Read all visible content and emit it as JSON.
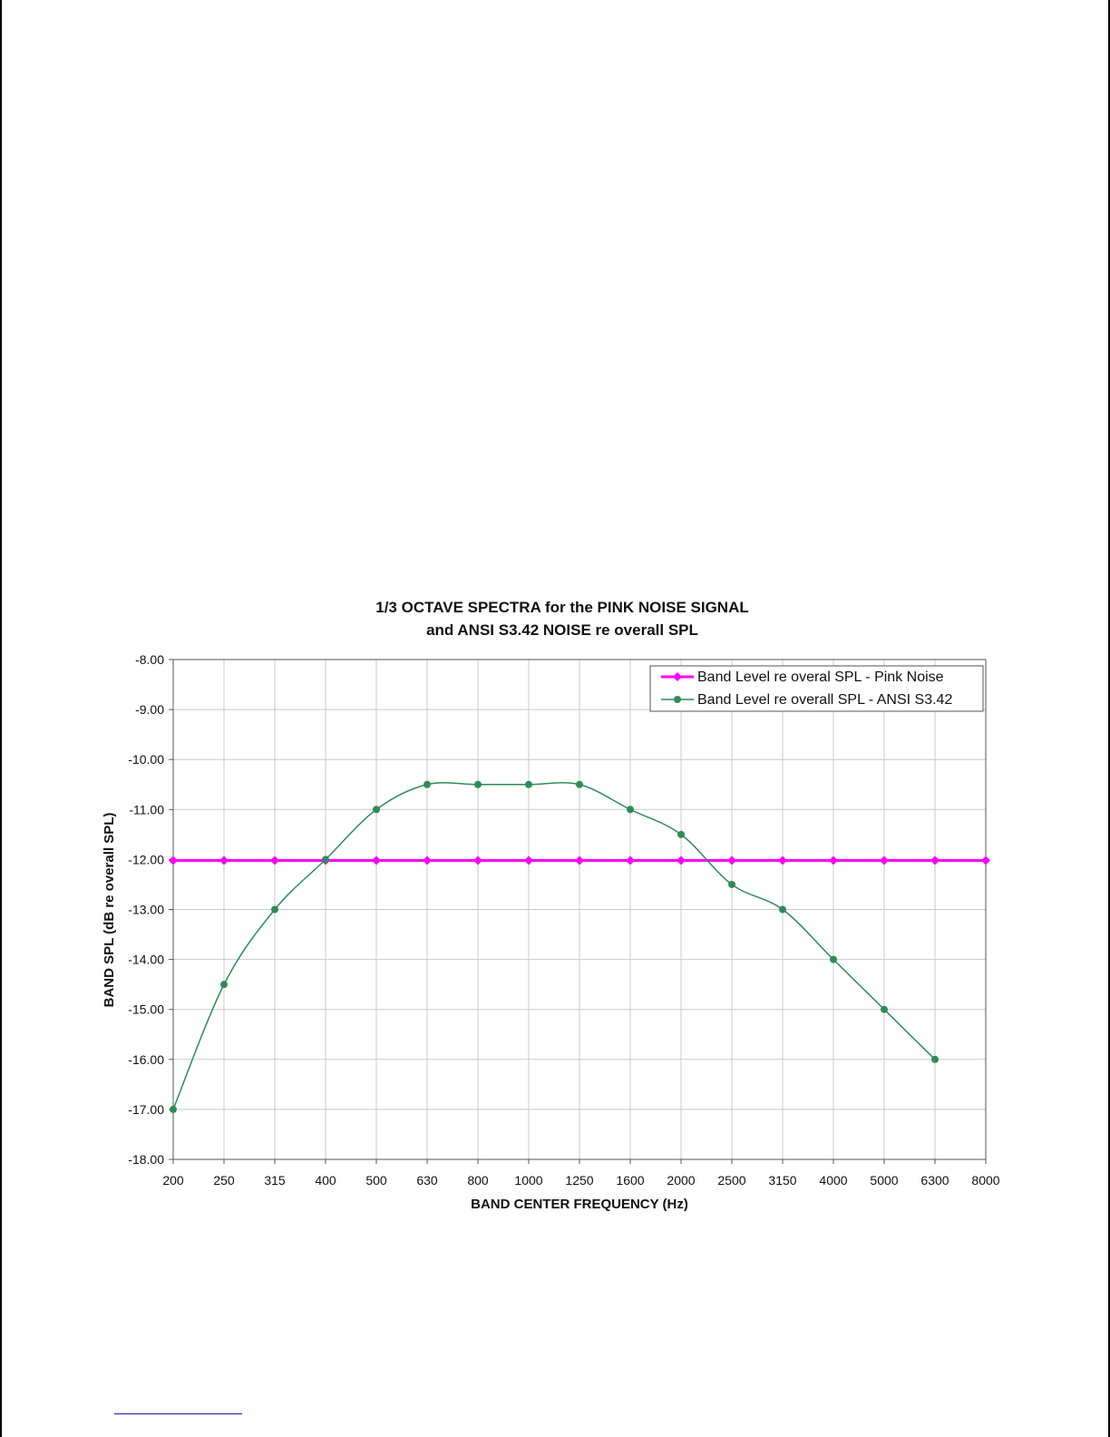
{
  "chart_data": {
    "type": "line",
    "title": [
      "1/3 OCTAVE SPECTRA for the PINK NOISE SIGNAL",
      "and ANSI S3.42 NOISE re overall SPL"
    ],
    "xlabel": "BAND CENTER FREQUENCY (Hz)",
    "ylabel": "BAND SPL (dB re overall SPL)",
    "categories": [
      "200",
      "250",
      "315",
      "400",
      "500",
      "630",
      "800",
      "1000",
      "1250",
      "1600",
      "2000",
      "2500",
      "3150",
      "4000",
      "5000",
      "6300",
      "8000"
    ],
    "ylim": [
      -18.0,
      -8.0
    ],
    "yticks": [
      "-8.00",
      "-9.00",
      "-10.00",
      "-11.00",
      "-12.00",
      "-13.00",
      "-14.00",
      "-15.00",
      "-16.00",
      "-17.00",
      "-18.00"
    ],
    "grid": true,
    "legend_position": "top-right",
    "series": [
      {
        "name": "Band Level re overal SPL - Pink Noise",
        "color": "#ff00ff",
        "marker": "diamond",
        "values": [
          -12.02,
          -12.02,
          -12.02,
          -12.02,
          -12.02,
          -12.02,
          -12.02,
          -12.02,
          -12.02,
          -12.02,
          -12.02,
          -12.02,
          -12.02,
          -12.02,
          -12.02,
          -12.02,
          -12.02
        ]
      },
      {
        "name": "Band Level re overall SPL - ANSI S3.42",
        "color": "#2e8b57",
        "marker": "circle",
        "values": [
          -17.0,
          -14.5,
          -13.0,
          -12.0,
          -11.0,
          -10.5,
          -10.5,
          -10.5,
          -10.5,
          -11.0,
          -11.5,
          -12.5,
          -13.0,
          -14.0,
          -15.0,
          -16.0,
          null
        ]
      }
    ]
  }
}
